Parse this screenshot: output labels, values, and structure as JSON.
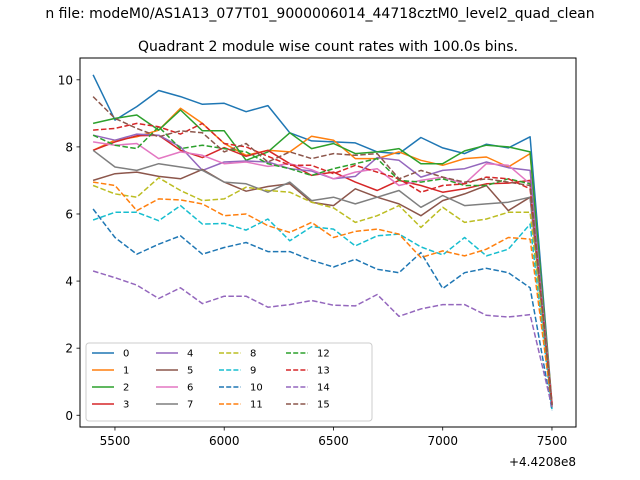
{
  "chart_data": {
    "type": "line",
    "suptitle": "n file: modeM0/AS1A13_077T01_9000006014_44718cztM0_level2_quad_clean",
    "title": "Quadrant 2 module wise count rates with 100.0s bins.",
    "xlabel": "",
    "ylabel": "",
    "x_offset_label": "+4.4208e8",
    "x_offset": 442080000,
    "xlim": [
      5340,
      7610
    ],
    "ylim": [
      -0.35,
      10.65
    ],
    "xticks": [
      5500,
      6000,
      6500,
      7000,
      7500
    ],
    "yticks": [
      0,
      2,
      4,
      6,
      8,
      10
    ],
    "grid": false,
    "legend": {
      "placement": "lower-left",
      "columns": 4
    },
    "x": [
      5400,
      5500,
      5600,
      5700,
      5800,
      5900,
      6000,
      6100,
      6200,
      6300,
      6400,
      6500,
      6600,
      6700,
      6800,
      6900,
      7000,
      7100,
      7200,
      7300,
      7400,
      7500
    ],
    "series": [
      {
        "name": "0",
        "color": "#1f77b4",
        "dash": "solid",
        "values": [
          10.15,
          8.8,
          9.2,
          9.68,
          9.5,
          9.27,
          9.3,
          9.05,
          9.23,
          8.42,
          8.18,
          8.15,
          8.12,
          7.85,
          7.8,
          8.28,
          7.97,
          7.8,
          8.08,
          7.97,
          8.3,
          0.35
        ]
      },
      {
        "name": "1",
        "color": "#ff7f0e",
        "dash": "solid",
        "values": [
          7.9,
          8.2,
          8.3,
          8.5,
          9.15,
          8.7,
          8.1,
          7.75,
          7.9,
          7.85,
          8.32,
          8.2,
          7.65,
          7.65,
          7.85,
          7.6,
          7.45,
          7.65,
          7.7,
          7.4,
          7.8,
          0.35
        ]
      },
      {
        "name": "2",
        "color": "#2ca02c",
        "dash": "solid",
        "values": [
          8.7,
          8.85,
          8.95,
          8.5,
          9.1,
          8.48,
          8.48,
          7.6,
          7.85,
          8.42,
          7.95,
          8.1,
          7.8,
          7.85,
          7.95,
          7.5,
          7.5,
          7.88,
          8.05,
          8.0,
          7.85,
          0.3
        ]
      },
      {
        "name": "3",
        "color": "#d62728",
        "dash": "solid",
        "values": [
          7.9,
          8.15,
          8.33,
          8.35,
          7.9,
          7.68,
          7.98,
          7.72,
          7.9,
          7.5,
          7.15,
          7.25,
          6.95,
          6.7,
          7.0,
          6.85,
          6.65,
          6.75,
          6.9,
          6.92,
          7.0,
          0.3
        ]
      },
      {
        "name": "4",
        "color": "#9467bd",
        "dash": "solid",
        "values": [
          8.35,
          8.2,
          8.38,
          8.35,
          8.0,
          7.3,
          7.55,
          7.58,
          7.55,
          7.35,
          7.28,
          7.05,
          7.12,
          7.68,
          7.6,
          7.1,
          7.3,
          7.35,
          7.55,
          7.38,
          7.3,
          0.3
        ]
      },
      {
        "name": "5",
        "color": "#8c564b",
        "dash": "solid",
        "values": [
          7.0,
          7.2,
          7.25,
          7.12,
          7.05,
          7.33,
          6.95,
          6.68,
          6.82,
          6.9,
          6.35,
          6.25,
          6.75,
          6.5,
          6.3,
          5.95,
          6.4,
          6.6,
          6.85,
          6.1,
          6.5,
          0.3
        ]
      },
      {
        "name": "6",
        "color": "#e377c2",
        "dash": "solid",
        "values": [
          8.15,
          8.05,
          8.1,
          7.65,
          7.85,
          7.75,
          7.5,
          7.55,
          7.42,
          7.5,
          7.32,
          7.05,
          7.25,
          7.35,
          6.85,
          7.0,
          7.1,
          6.9,
          7.5,
          7.45,
          6.9,
          0.3
        ]
      },
      {
        "name": "7",
        "color": "#7f7f7f",
        "dash": "solid",
        "values": [
          7.9,
          7.4,
          7.3,
          7.5,
          7.4,
          7.3,
          6.95,
          6.9,
          6.65,
          6.95,
          6.4,
          6.5,
          6.3,
          6.5,
          6.7,
          6.2,
          6.55,
          6.25,
          6.3,
          6.35,
          6.5,
          0.2
        ]
      },
      {
        "name": "8",
        "color": "#bcbd22",
        "dash": "dashed",
        "values": [
          6.85,
          6.6,
          6.5,
          7.08,
          6.7,
          6.4,
          6.45,
          6.8,
          6.7,
          6.65,
          6.35,
          6.18,
          5.75,
          5.95,
          6.25,
          5.6,
          6.2,
          5.75,
          5.85,
          6.05,
          6.05,
          0.2
        ]
      },
      {
        "name": "9",
        "color": "#17becf",
        "dash": "dashed",
        "values": [
          5.82,
          6.05,
          6.05,
          5.8,
          6.25,
          5.7,
          5.72,
          5.52,
          5.85,
          5.2,
          5.62,
          5.55,
          5.05,
          5.35,
          5.4,
          5.02,
          4.78,
          5.3,
          4.75,
          4.95,
          5.7,
          0.15
        ]
      },
      {
        "name": "10",
        "color": "#1f77b4",
        "dash": "dashed",
        "values": [
          6.15,
          5.3,
          4.8,
          5.1,
          5.35,
          4.8,
          5.0,
          5.15,
          4.88,
          4.88,
          4.62,
          4.42,
          4.65,
          4.35,
          4.25,
          4.85,
          3.78,
          4.25,
          4.38,
          4.25,
          3.8,
          0.15
        ]
      },
      {
        "name": "11",
        "color": "#ff7f0e",
        "dash": "dashed",
        "values": [
          6.95,
          6.85,
          6.1,
          6.45,
          6.42,
          6.3,
          5.95,
          6.0,
          5.65,
          5.45,
          5.75,
          5.3,
          5.48,
          5.55,
          5.4,
          4.7,
          4.9,
          4.75,
          4.95,
          5.3,
          5.25,
          0.25
        ]
      },
      {
        "name": "12",
        "color": "#2ca02c",
        "dash": "dashed",
        "values": [
          8.35,
          8.05,
          7.95,
          8.6,
          7.95,
          8.05,
          7.95,
          7.85,
          7.5,
          7.35,
          7.15,
          7.35,
          7.5,
          7.65,
          7.0,
          6.95,
          7.05,
          6.85,
          6.85,
          7.05,
          6.9,
          0.25
        ]
      },
      {
        "name": "13",
        "color": "#d62728",
        "dash": "dashed",
        "values": [
          8.5,
          8.55,
          8.7,
          8.6,
          8.38,
          8.7,
          8.1,
          8.0,
          7.72,
          7.45,
          7.45,
          7.2,
          7.45,
          7.25,
          7.05,
          6.65,
          6.85,
          6.9,
          7.1,
          7.05,
          6.75,
          0.35
        ]
      },
      {
        "name": "14",
        "color": "#9467bd",
        "dash": "dashed",
        "values": [
          4.3,
          4.1,
          3.88,
          3.48,
          3.8,
          3.33,
          3.55,
          3.55,
          3.22,
          3.3,
          3.42,
          3.28,
          3.26,
          3.6,
          2.95,
          3.17,
          3.3,
          3.3,
          2.98,
          2.93,
          3.0,
          0.25
        ]
      },
      {
        "name": "15",
        "color": "#8c564b",
        "dash": "dashed",
        "values": [
          9.5,
          8.85,
          8.55,
          8.3,
          8.48,
          8.42,
          7.85,
          8.1,
          7.55,
          7.85,
          7.65,
          7.8,
          7.75,
          7.8,
          7.05,
          7.3,
          7.1,
          6.95,
          7.05,
          6.95,
          6.85,
          0.3
        ]
      }
    ]
  }
}
